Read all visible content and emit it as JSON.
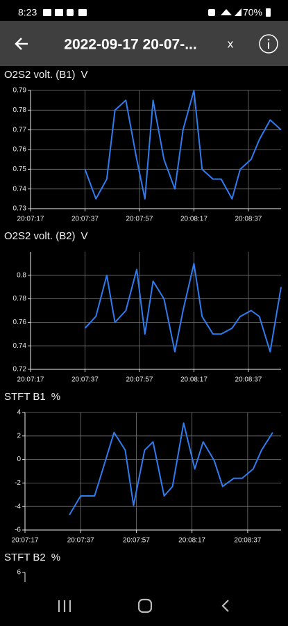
{
  "status_bar": {
    "time": "8:23",
    "battery": "70%"
  },
  "toolbar": {
    "title": "2022-09-17 20-07-...",
    "close": "x"
  },
  "chart_data": [
    {
      "type": "line",
      "title": "O2S2 volt. (B1)",
      "unit": "V",
      "x": [
        "20:07:37",
        "20:07:41",
        "20:07:45",
        "20:07:48",
        "20:07:52",
        "20:07:56",
        "20:07:59",
        "20:08:02",
        "20:08:06",
        "20:08:10",
        "20:08:13",
        "20:08:17",
        "20:08:20",
        "20:08:24",
        "20:08:27",
        "20:08:31",
        "20:08:34",
        "20:08:38",
        "20:08:41",
        "20:08:45",
        "20:08:49"
      ],
      "series": [
        {
          "color": "#2f7cf0",
          "values": [
            0.75,
            0.735,
            0.745,
            0.78,
            0.785,
            0.755,
            0.735,
            0.785,
            0.755,
            0.74,
            0.77,
            0.79,
            0.75,
            0.745,
            0.745,
            0.735,
            0.75,
            0.755,
            0.765,
            0.775,
            0.77
          ]
        }
      ],
      "xlim": [
        "20:07:17",
        "20:08:49"
      ],
      "xticks": [
        "20:07:17",
        "20:07:37",
        "20:07:57",
        "20:08:17",
        "20:08:37"
      ],
      "ylim": [
        0.73,
        0.79
      ],
      "yticks": [
        0.73,
        0.74,
        0.75,
        0.76,
        0.77,
        0.78,
        0.79
      ],
      "grid": true
    },
    {
      "type": "line",
      "title": "O2S2 volt. (B2)",
      "unit": "V",
      "x": [
        "20:07:37",
        "20:07:41",
        "20:07:45",
        "20:07:48",
        "20:07:52",
        "20:07:56",
        "20:07:59",
        "20:08:02",
        "20:08:06",
        "20:08:10",
        "20:08:13",
        "20:08:17",
        "20:08:20",
        "20:08:24",
        "20:08:27",
        "20:08:31",
        "20:08:34",
        "20:08:38",
        "20:08:41",
        "20:08:45",
        "20:08:49"
      ],
      "series": [
        {
          "color": "#2f7cf0",
          "values": [
            0.755,
            0.765,
            0.8,
            0.76,
            0.77,
            0.805,
            0.75,
            0.795,
            0.78,
            0.735,
            0.77,
            0.81,
            0.765,
            0.75,
            0.75,
            0.755,
            0.765,
            0.77,
            0.765,
            0.735,
            0.79
          ]
        }
      ],
      "xlim": [
        "20:07:17",
        "20:08:49"
      ],
      "xticks": [
        "20:07:17",
        "20:07:37",
        "20:07:57",
        "20:08:17",
        "20:08:37"
      ],
      "ylim": [
        0.72,
        0.82
      ],
      "yticks": [
        0.72,
        0.74,
        0.76,
        0.78,
        0.8
      ],
      "grid": true
    },
    {
      "type": "line",
      "title": "STFT B1",
      "unit": "%",
      "x": [
        "20:07:33",
        "20:07:37",
        "20:07:42",
        "20:07:45",
        "20:07:49",
        "20:07:53",
        "20:07:56",
        "20:08:00",
        "20:08:03",
        "20:08:07",
        "20:08:10",
        "20:08:14",
        "20:08:18",
        "20:08:21",
        "20:08:25",
        "20:08:28",
        "20:08:32",
        "20:08:35",
        "20:08:39",
        "20:08:42",
        "20:08:46"
      ],
      "series": [
        {
          "color": "#2f7cf0",
          "values": [
            -4.7,
            -3.1,
            -3.1,
            -0.8,
            2.3,
            0.8,
            -3.9,
            0.8,
            1.5,
            -3.1,
            -2.3,
            3.1,
            -0.8,
            1.5,
            -0.1,
            -2.3,
            -1.6,
            -1.6,
            -0.8,
            0.8,
            2.3
          ]
        }
      ],
      "xlim": [
        "20:07:17",
        "20:08:49"
      ],
      "xticks": [
        "20:07:17",
        "20:07:37",
        "20:07:57",
        "20:08:17",
        "20:08:37"
      ],
      "ylim": [
        -6,
        4
      ],
      "yticks": [
        -6,
        -4,
        -2,
        0,
        2,
        4
      ],
      "grid": true
    },
    {
      "type": "line",
      "title": "STFT B2",
      "unit": "%",
      "yticks": [
        6
      ]
    }
  ]
}
